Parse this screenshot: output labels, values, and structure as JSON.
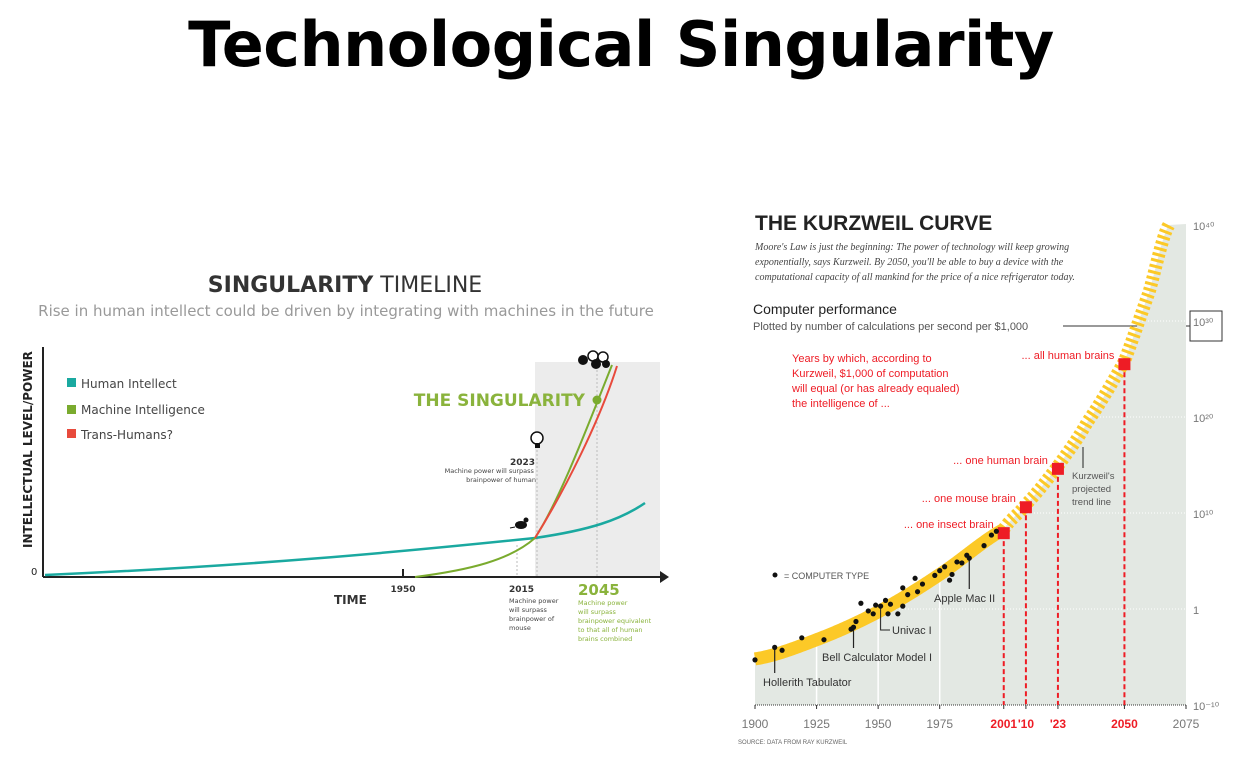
{
  "slide": {
    "title": "Technological Singularity"
  },
  "chart_data": [
    {
      "type": "line",
      "title_bold": "SINGULARITY",
      "title_rest": "TIMELINE",
      "subtitle": "Rise in human intellect could be driven by integrating with machines in the future",
      "xlabel": "TIME",
      "ylabel": "INTELLECTUAL LEVEL/POWER",
      "y_tick": "0",
      "legend_position": "top-left",
      "series": [
        {
          "name": "Human Intellect",
          "color": "#1aa9a0"
        },
        {
          "name": "Machine Intelligence",
          "color": "#7aab2e"
        },
        {
          "name": "Trans-Humans?",
          "color": "#e84a3c"
        }
      ],
      "x_ticks": [
        "1950",
        "2015",
        "2045"
      ],
      "annotations": {
        "singularity": "THE SINGULARITY",
        "y2023": "2023",
        "y2023_text": [
          "Machine power will surpass",
          "brainpower of human"
        ],
        "y2015_text": [
          "Machine power",
          "will surpass",
          "brainpower of",
          "mouse"
        ],
        "y2045_text": [
          "Machine power",
          "will surpass",
          "brainpower equivalent",
          "to that all of human",
          "brains combined"
        ]
      },
      "shaded_region": "after 2015"
    },
    {
      "type": "scatter",
      "title": "THE KURZWEIL CURVE",
      "intro": [
        "Moore's Law is just the beginning: The power of technology will keep growing",
        "exponentially, says Kurzweil. By 2050, you'll be able to buy a device with the",
        "computational capacity of all mankind for the price of a nice refrigerator today."
      ],
      "ylabel": "Computer performance",
      "ylabel_sub": "Plotted by number of calculations per second per $1,000",
      "y_scale": "log",
      "ylim_exponent": [
        -10,
        40
      ],
      "xlim": [
        1900,
        2075
      ],
      "x_ticks": [
        {
          "label": "1900",
          "year": 1900,
          "color": "#777777"
        },
        {
          "label": "1925",
          "year": 1925,
          "color": "#777777"
        },
        {
          "label": "1950",
          "year": 1950,
          "color": "#777777"
        },
        {
          "label": "1975",
          "year": 1975,
          "color": "#777777"
        },
        {
          "label": "2001",
          "year": 2001,
          "color": "#ee1c25"
        },
        {
          "label": "'10",
          "year": 2010,
          "color": "#ee1c25"
        },
        {
          "label": "'23",
          "year": 2023,
          "color": "#ee1c25"
        },
        {
          "label": "2050",
          "year": 2050,
          "color": "#ee1c25"
        },
        {
          "label": "2075",
          "year": 2075,
          "color": "#777777"
        }
      ],
      "y_ticks": [
        {
          "label": "10⁴⁰",
          "exp": 40
        },
        {
          "label": "10³⁰",
          "exp": 30
        },
        {
          "label": "10²⁰",
          "exp": 20
        },
        {
          "label": "10¹⁰",
          "exp": 10
        },
        {
          "label": "1",
          "exp": 0
        },
        {
          "label": "10⁻¹⁰",
          "exp": -10
        }
      ],
      "legend": "= COMPUTER TYPE",
      "computer_types": [
        [
          1900,
          -5.3
        ],
        [
          1908,
          -4.0
        ],
        [
          1911,
          -4.3
        ],
        [
          1919,
          -3.0
        ],
        [
          1928,
          -3.2
        ],
        [
          1939,
          -2.1
        ],
        [
          1940,
          -1.9
        ],
        [
          1941,
          -1.3
        ],
        [
          1943,
          0.6
        ],
        [
          1946,
          -0.2
        ],
        [
          1948,
          -0.5
        ],
        [
          1949,
          0.4
        ],
        [
          1951,
          0.3
        ],
        [
          1953,
          0.9
        ],
        [
          1954,
          -0.5
        ],
        [
          1955,
          0.5
        ],
        [
          1958,
          -0.5
        ],
        [
          1960,
          0.3
        ],
        [
          1960,
          2.2
        ],
        [
          1962,
          1.5
        ],
        [
          1965,
          3.2
        ],
        [
          1966,
          1.8
        ],
        [
          1968,
          2.6
        ],
        [
          1973,
          3.5
        ],
        [
          1975,
          4.0
        ],
        [
          1977,
          4.4
        ],
        [
          1979,
          3.0
        ],
        [
          1980,
          3.6
        ],
        [
          1982,
          4.9
        ],
        [
          1984,
          4.8
        ],
        [
          1986,
          5.6
        ],
        [
          1987,
          5.3
        ],
        [
          1993,
          6.6
        ],
        [
          1996,
          7.7
        ],
        [
          1998,
          8.1
        ]
      ],
      "trend_line": {
        "label": [
          "Kurzweil's",
          "projected",
          "trend line"
        ],
        "color": "#fcc927",
        "points": [
          [
            1900,
            -5.2
          ],
          [
            1925,
            -3.2
          ],
          [
            1950,
            -0.3
          ],
          [
            1975,
            3.6
          ],
          [
            2001,
            8.3
          ],
          [
            2010,
            10.9
          ],
          [
            2023,
            14.9
          ],
          [
            2035,
            19.5
          ],
          [
            2050,
            25.8
          ],
          [
            2060,
            33
          ],
          [
            2068,
            40
          ]
        ]
      },
      "computer_labels": [
        {
          "label": "Hollerith Tabulator",
          "year": 1908
        },
        {
          "label": "Bell Calculator Model I",
          "year": 1940
        },
        {
          "label": "Univac I",
          "year": 1951
        },
        {
          "label": "Apple Mac II",
          "year": 1987
        }
      ],
      "milestones_intro": [
        "Years by which, according to",
        "Kurzweil, $1,000 of computation",
        "will equal (or has already equaled)",
        "the intelligence of ..."
      ],
      "milestones": [
        {
          "label": "... one insect brain",
          "year": 2001,
          "exp": 7.9
        },
        {
          "label": "... one mouse brain",
          "year": 2010,
          "exp": 10.6
        },
        {
          "label": "... one human brain",
          "year": 2023,
          "exp": 14.6
        },
        {
          "label": "... all human brains",
          "year": 2050,
          "exp": 25.5
        }
      ],
      "source": "SOURCE: DATA FROM RAY KURZWEIL",
      "colors": {
        "milestone": "#ee1c25",
        "fill": "#e3e8e3"
      }
    }
  ]
}
